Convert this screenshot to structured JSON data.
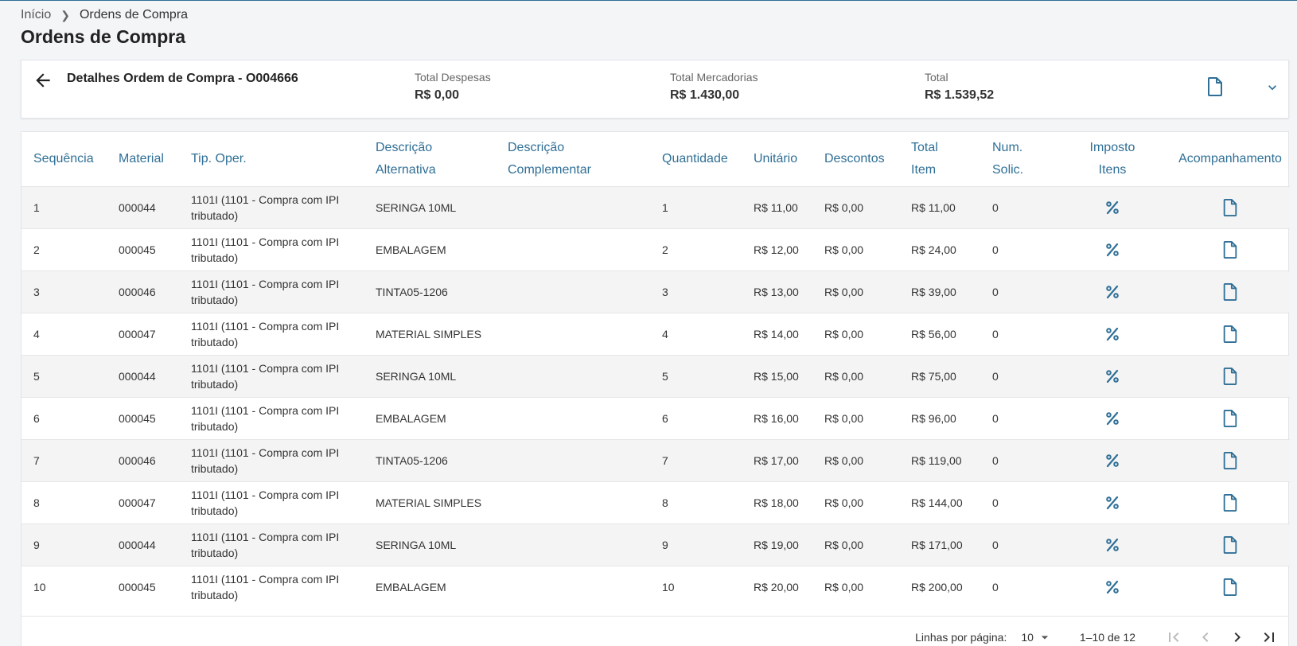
{
  "breadcrumb": {
    "home": "Início",
    "current": "Ordens de Compra"
  },
  "page_title": "Ordens de Compra",
  "summary": {
    "title": "Detalhes Ordem de Compra - O004666",
    "total_despesas_label": "Total Despesas",
    "total_despesas_value": "R$ 0,00",
    "total_mercadorias_label": "Total Mercadorias",
    "total_mercadorias_value": "R$ 1.430,00",
    "total_label": "Total",
    "total_value": "R$ 1.539,52"
  },
  "table": {
    "headers": {
      "sequencia": "Sequência",
      "material": "Material",
      "tip_oper": "Tip. Oper.",
      "desc_alt_1": "Descrição",
      "desc_alt_2": "Alternativa",
      "desc_comp_1": "Descrição",
      "desc_comp_2": "Complementar",
      "quantidade": "Quantidade",
      "unitario": "Unitário",
      "descontos": "Descontos",
      "total_item_1": "Total",
      "total_item_2": "Item",
      "num_solic_1": "Num.",
      "num_solic_2": "Solic.",
      "imposto_1": "Imposto",
      "imposto_2": "Itens",
      "acompanhamento": "Acompanhamento"
    },
    "rows": [
      {
        "seq": "1",
        "material": "000044",
        "tip_oper": "1101I (1101 - Compra com IPI tributado)",
        "desc_alt": "SERINGA 10ML",
        "desc_comp": "",
        "qtd": "1",
        "unit": "R$ 11,00",
        "desc": "R$ 0,00",
        "total": "R$ 11,00",
        "num": "0"
      },
      {
        "seq": "2",
        "material": "000045",
        "tip_oper": "1101I (1101 - Compra com IPI tributado)",
        "desc_alt": "EMBALAGEM",
        "desc_comp": "",
        "qtd": "2",
        "unit": "R$ 12,00",
        "desc": "R$ 0,00",
        "total": "R$ 24,00",
        "num": "0"
      },
      {
        "seq": "3",
        "material": "000046",
        "tip_oper": "1101I (1101 - Compra com IPI tributado)",
        "desc_alt": "TINTA05-1206",
        "desc_comp": "",
        "qtd": "3",
        "unit": "R$ 13,00",
        "desc": "R$ 0,00",
        "total": "R$ 39,00",
        "num": "0"
      },
      {
        "seq": "4",
        "material": "000047",
        "tip_oper": "1101I (1101 - Compra com IPI tributado)",
        "desc_alt": "MATERIAL SIMPLES",
        "desc_comp": "",
        "qtd": "4",
        "unit": "R$ 14,00",
        "desc": "R$ 0,00",
        "total": "R$ 56,00",
        "num": "0"
      },
      {
        "seq": "5",
        "material": "000044",
        "tip_oper": "1101I (1101 - Compra com IPI tributado)",
        "desc_alt": "SERINGA 10ML",
        "desc_comp": "",
        "qtd": "5",
        "unit": "R$ 15,00",
        "desc": "R$ 0,00",
        "total": "R$ 75,00",
        "num": "0"
      },
      {
        "seq": "6",
        "material": "000045",
        "tip_oper": "1101I (1101 - Compra com IPI tributado)",
        "desc_alt": "EMBALAGEM",
        "desc_comp": "",
        "qtd": "6",
        "unit": "R$ 16,00",
        "desc": "R$ 0,00",
        "total": "R$ 96,00",
        "num": "0"
      },
      {
        "seq": "7",
        "material": "000046",
        "tip_oper": "1101I (1101 - Compra com IPI tributado)",
        "desc_alt": "TINTA05-1206",
        "desc_comp": "",
        "qtd": "7",
        "unit": "R$ 17,00",
        "desc": "R$ 0,00",
        "total": "R$ 119,00",
        "num": "0"
      },
      {
        "seq": "8",
        "material": "000047",
        "tip_oper": "1101I (1101 - Compra com IPI tributado)",
        "desc_alt": "MATERIAL SIMPLES",
        "desc_comp": "",
        "qtd": "8",
        "unit": "R$ 18,00",
        "desc": "R$ 0,00",
        "total": "R$ 144,00",
        "num": "0"
      },
      {
        "seq": "9",
        "material": "000044",
        "tip_oper": "1101I (1101 - Compra com IPI tributado)",
        "desc_alt": "SERINGA 10ML",
        "desc_comp": "",
        "qtd": "9",
        "unit": "R$ 19,00",
        "desc": "R$ 0,00",
        "total": "R$ 171,00",
        "num": "0"
      },
      {
        "seq": "10",
        "material": "000045",
        "tip_oper": "1101I (1101 - Compra com IPI tributado)",
        "desc_alt": "EMBALAGEM",
        "desc_comp": "",
        "qtd": "10",
        "unit": "R$ 20,00",
        "desc": "R$ 0,00",
        "total": "R$ 200,00",
        "num": "0"
      }
    ]
  },
  "pagination": {
    "rows_label": "Linhas por página:",
    "rows_value": "10",
    "range": "1–10 de 12"
  },
  "icons": {
    "back": "arrow-left-icon",
    "document": "document-icon",
    "expand": "chevron-down-icon",
    "tax": "percent-icon"
  },
  "colors": {
    "accent": "#2f6f96"
  }
}
